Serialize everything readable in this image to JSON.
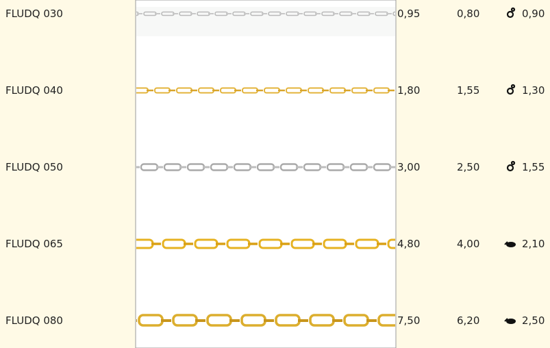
{
  "rows": [
    {
      "code": "FLUDQ 030",
      "values": [
        "0,95",
        "0,80",
        "0,90"
      ]
    },
    {
      "code": "FLUDQ 040",
      "values": [
        "1,80",
        "1,55",
        "1,30"
      ]
    },
    {
      "code": "FLUDQ 050",
      "values": [
        "3,00",
        "2,50",
        "1,55"
      ]
    },
    {
      "code": "FLUDQ 065",
      "values": [
        "4,80",
        "4,00",
        "2,10"
      ]
    },
    {
      "code": "FLUDQ 080",
      "values": [
        "7,50",
        "6,20",
        "2,50"
      ]
    }
  ]
}
